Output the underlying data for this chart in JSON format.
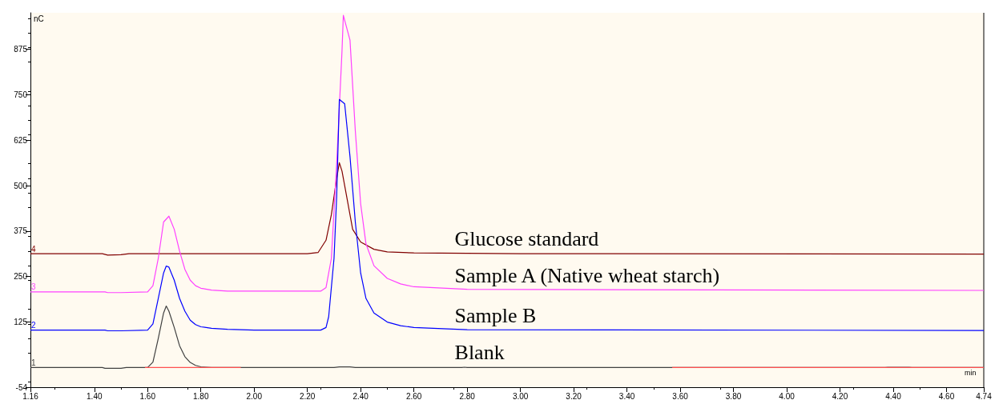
{
  "chart_data": {
    "type": "line",
    "xlabel": "min",
    "ylabel": "nC",
    "xlim": [
      1.16,
      4.74
    ],
    "xticks": [
      1.16,
      {
        "value": 1.4,
        "label": "1.40"
      },
      {
        "value": 1.6,
        "label": "1.60"
      },
      {
        "value": 1.8,
        "label": "1.80"
      },
      {
        "value": 2.0,
        "label": "2.00"
      },
      {
        "value": 2.2,
        "label": "2.20"
      },
      {
        "value": 2.4,
        "label": "2.40"
      },
      {
        "value": 2.6,
        "label": "2.60"
      },
      {
        "value": 2.8,
        "label": "2.80"
      },
      {
        "value": 3.0,
        "label": "3.00"
      },
      {
        "value": 3.2,
        "label": "3.20"
      },
      {
        "value": 3.4,
        "label": "3.40"
      },
      {
        "value": 3.6,
        "label": "3.60"
      },
      {
        "value": 3.8,
        "label": "3.80"
      },
      {
        "value": 4.0,
        "label": "4.00"
      },
      {
        "value": 4.2,
        "label": "4.20"
      },
      {
        "value": 4.4,
        "label": "4.40"
      },
      {
        "value": 4.6,
        "label": "4.60"
      },
      4.74
    ],
    "ylim": [
      -54,
      975
    ],
    "yticks": [
      -54,
      125,
      250,
      375,
      500,
      625,
      750,
      875
    ],
    "grid": false,
    "legend": false,
    "marker": "none",
    "line_style": "solid",
    "series": [
      {
        "name": "Glucose standard",
        "color": "#800000",
        "x": [
          1.16,
          1.43,
          1.45,
          1.5,
          1.53,
          2.2,
          2.24,
          2.27,
          2.29,
          2.31,
          2.32,
          2.33,
          2.35,
          2.37,
          2.4,
          2.45,
          2.5,
          2.6,
          3.0,
          4.74
        ],
        "values": [
          313,
          313,
          309,
          310,
          313,
          313,
          316,
          350,
          420,
          520,
          563,
          540,
          460,
          380,
          345,
          325,
          318,
          315,
          313,
          312
        ]
      },
      {
        "name": "Sample A (Native wheat starch)",
        "color": "#ff40ff",
        "x": [
          1.16,
          1.44,
          1.45,
          1.5,
          1.6,
          1.62,
          1.64,
          1.66,
          1.68,
          1.7,
          1.72,
          1.74,
          1.76,
          1.78,
          1.8,
          1.84,
          1.9,
          2.25,
          2.27,
          2.29,
          2.31,
          2.33,
          2.335,
          2.36,
          2.38,
          2.4,
          2.42,
          2.45,
          2.5,
          2.55,
          2.6,
          2.8,
          4.74
        ],
        "values": [
          208,
          208,
          206,
          206,
          208,
          225,
          300,
          400,
          416,
          380,
          320,
          270,
          240,
          225,
          218,
          213,
          210,
          210,
          220,
          300,
          560,
          870,
          968,
          900,
          650,
          450,
          340,
          280,
          245,
          230,
          222,
          215,
          212
        ]
      },
      {
        "name": "Sample B",
        "color": "#0000ff",
        "x": [
          1.16,
          1.44,
          1.45,
          1.5,
          1.6,
          1.62,
          1.64,
          1.66,
          1.67,
          1.68,
          1.7,
          1.72,
          1.74,
          1.76,
          1.78,
          1.8,
          1.84,
          1.9,
          2.0,
          2.25,
          2.27,
          2.28,
          2.3,
          2.31,
          2.32,
          2.34,
          2.36,
          2.38,
          2.4,
          2.42,
          2.45,
          2.5,
          2.55,
          2.6,
          2.8,
          4.74
        ],
        "values": [
          103,
          103,
          101,
          101,
          103,
          120,
          190,
          260,
          279,
          276,
          240,
          190,
          155,
          130,
          118,
          112,
          108,
          105,
          103,
          103,
          110,
          140,
          300,
          470,
          737,
          725,
          580,
          400,
          260,
          190,
          150,
          125,
          115,
          110,
          104,
          102
        ]
      },
      {
        "name": "Blank",
        "color": "#404040",
        "x": [
          1.16,
          1.43,
          1.44,
          1.5,
          1.52,
          1.6,
          1.62,
          1.64,
          1.66,
          1.67,
          1.68,
          1.7,
          1.72,
          1.74,
          1.76,
          1.78,
          1.8,
          1.84,
          2.3,
          2.32,
          2.36,
          2.38,
          2.78,
          2.79,
          2.8,
          4.37,
          4.38,
          4.46,
          4.47,
          4.74
        ],
        "values": [
          0,
          0,
          -2,
          -2,
          0,
          0,
          15,
          80,
          150,
          169,
          155,
          110,
          60,
          30,
          14,
          6,
          2,
          0,
          0,
          2,
          2,
          0,
          0,
          1,
          0,
          0,
          1,
          1,
          0,
          0
        ]
      },
      {
        "color": "#ff5050",
        "x": [
          1.59,
          1.95
        ],
        "values": [
          0,
          0
        ]
      },
      {
        "color": "#ff5050",
        "x": [
          3.57,
          4.74
        ],
        "values": [
          0,
          0
        ]
      }
    ],
    "annotations": [
      {
        "text": "4",
        "y": 313
      },
      {
        "text": "3",
        "y": 208
      },
      {
        "text": "2",
        "y": 103
      },
      {
        "text": "1",
        "y": 0
      }
    ]
  }
}
